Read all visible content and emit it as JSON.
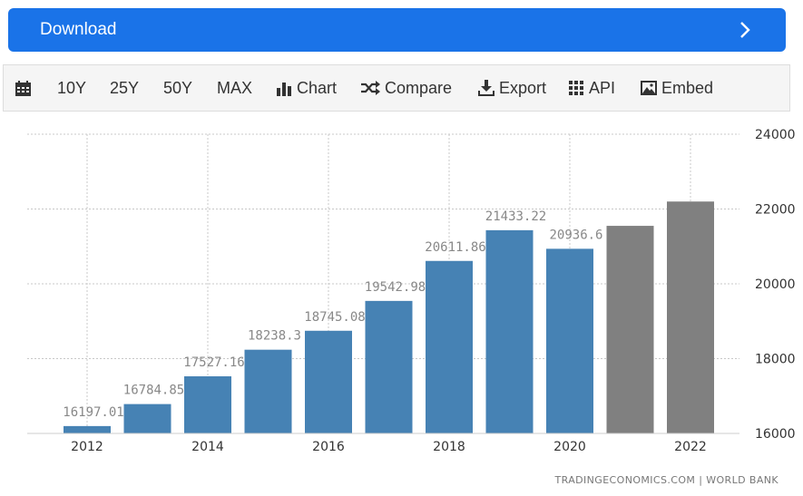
{
  "download": {
    "label": "Download",
    "icon": "chevron-right-icon"
  },
  "toolbar": {
    "items": [
      {
        "label": "",
        "icon": "calendar-icon"
      },
      {
        "label": "10Y"
      },
      {
        "label": "25Y"
      },
      {
        "label": "50Y"
      },
      {
        "label": "MAX"
      },
      {
        "label": "Chart",
        "icon": "bar-chart-icon"
      },
      {
        "label": "Compare",
        "icon": "shuffle-icon"
      },
      {
        "label": "Export",
        "icon": "download-icon"
      },
      {
        "label": "API",
        "icon": "grid-icon"
      },
      {
        "label": "Embed",
        "icon": "image-icon"
      }
    ]
  },
  "colors": {
    "actual": "#4682b4",
    "forecast": "#808080",
    "accent": "#1a73e8"
  },
  "credit": "TRADINGECONOMICS.COM | WORLD BANK",
  "chart_data": {
    "type": "bar",
    "categories": [
      "2012",
      "2013",
      "2014",
      "2015",
      "2016",
      "2017",
      "2018",
      "2019",
      "2020",
      "2021",
      "2022"
    ],
    "values": [
      16197.01,
      16784.85,
      17527.16,
      18238.3,
      18745.08,
      19542.98,
      20611.86,
      21433.22,
      20936.6,
      21550,
      22200
    ],
    "value_labels": [
      "16197.01",
      "16784.85",
      "17527.16",
      "18238.3",
      "18745.08",
      "19542.98",
      "20611.86",
      "21433.22",
      "20936.6",
      "",
      ""
    ],
    "forecast_from_index": 9,
    "x_tick_labels": [
      "2012",
      "",
      "2014",
      "",
      "2016",
      "",
      "2018",
      "",
      "2020",
      "",
      "2022"
    ],
    "y_ticks": [
      "16000",
      "18000",
      "20000",
      "22000",
      "24000"
    ],
    "ylim": [
      16000,
      24000
    ],
    "y_axis_side": "right",
    "grid": true,
    "title": "",
    "xlabel": "",
    "ylabel": ""
  }
}
